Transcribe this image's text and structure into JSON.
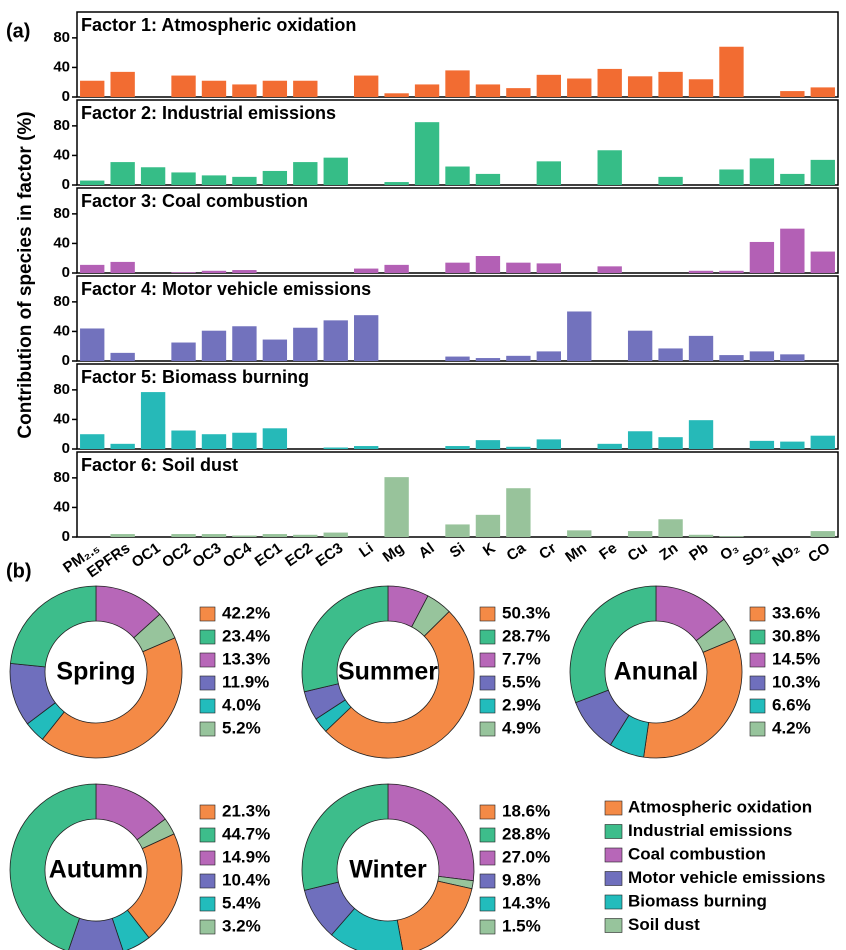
{
  "figure": {
    "panel_a": "(a)",
    "panel_b": "(b)",
    "ylabel": "Contribution of species in factor (%)"
  },
  "legend": {
    "names": [
      "Atmospheric oxidation",
      "Industrial emissions",
      "Coal combustion",
      "Motor vehicle emissions",
      "Biomass burning",
      "Soil dust"
    ],
    "colors": [
      "#f48a46",
      "#3dbd8b",
      "#b767b8",
      "#6f6fbd",
      "#22bcbc",
      "#97c49c"
    ]
  },
  "chart_data": [
    {
      "type": "bar",
      "title": "Factor 1: Atmospheric oxidation",
      "color": "#f26c32",
      "ylim": [
        0,
        115
      ],
      "yticks": [
        0,
        40,
        80
      ],
      "values": [
        22,
        34,
        0,
        29,
        22,
        17,
        22,
        22,
        0,
        29,
        5,
        17,
        36,
        17,
        12,
        30,
        25,
        38,
        28,
        34,
        24,
        68,
        0,
        8,
        13
      ]
    },
    {
      "type": "bar",
      "title": "Factor 2: Industrial emissions",
      "color": "#36bd87",
      "ylim": [
        0,
        115
      ],
      "yticks": [
        0,
        40,
        80
      ],
      "values": [
        6,
        31,
        24,
        17,
        13,
        11,
        19,
        31,
        37,
        0,
        4,
        85,
        25,
        15,
        0,
        32,
        0,
        47,
        0,
        11,
        0,
        21,
        36,
        15,
        34
      ]
    },
    {
      "type": "bar",
      "title": "Factor 3: Coal combustion",
      "color": "#b360b5",
      "ylim": [
        0,
        115
      ],
      "yticks": [
        0,
        40,
        80
      ],
      "values": [
        11,
        15,
        0,
        1,
        3,
        4,
        0,
        0,
        0,
        6,
        11,
        0,
        14,
        23,
        14,
        13,
        0,
        9,
        0,
        0,
        3,
        3,
        42,
        60,
        29
      ]
    },
    {
      "type": "bar",
      "title": "Factor 4: Motor vehicle emissions",
      "color": "#7272bd",
      "ylim": [
        0,
        115
      ],
      "yticks": [
        0,
        40,
        80
      ],
      "values": [
        44,
        11,
        0,
        25,
        41,
        47,
        29,
        45,
        55,
        62,
        0,
        0,
        6,
        4,
        7,
        13,
        67,
        0,
        41,
        17,
        34,
        8,
        13,
        9,
        0
      ]
    },
    {
      "type": "bar",
      "title": "Factor 5: Biomass burning",
      "color": "#26b9b8",
      "ylim": [
        0,
        115
      ],
      "yticks": [
        0,
        40,
        80
      ],
      "values": [
        20,
        7,
        77,
        25,
        20,
        22,
        28,
        0,
        2,
        4,
        0,
        0,
        4,
        12,
        3,
        13,
        0,
        7,
        24,
        16,
        39,
        0,
        11,
        10,
        18
      ]
    },
    {
      "type": "bar",
      "title": "Factor 6: Soil dust",
      "color": "#98c39b",
      "ylim": [
        0,
        115
      ],
      "yticks": [
        0,
        40,
        80
      ],
      "categories": [
        "PM₂.₅",
        "EPFRs",
        "OC1",
        "OC2",
        "OC3",
        "OC4",
        "EC1",
        "EC2",
        "EC3",
        "Li",
        "Mg",
        "Al",
        "Si",
        "K",
        "Ca",
        "Cr",
        "Mn",
        "Fe",
        "Cu",
        "Zn",
        "Pb",
        "O₃",
        "SO₂",
        "NO₂",
        "CO"
      ],
      "values": [
        0,
        4,
        0,
        4,
        4,
        2,
        4,
        3,
        6,
        0,
        81,
        0,
        17,
        30,
        66,
        0,
        9,
        0,
        8,
        24,
        3,
        1,
        0,
        0,
        8
      ]
    },
    {
      "type": "pie",
      "title": "Spring",
      "values": [
        42.2,
        23.4,
        13.3,
        11.9,
        4.0,
        5.2
      ],
      "value_labels": [
        "42.2%",
        "23.4%",
        "13.3%",
        "11.9%",
        "4.0%",
        "5.2%"
      ]
    },
    {
      "type": "pie",
      "title": "Summer",
      "values": [
        50.3,
        28.7,
        7.7,
        5.5,
        2.9,
        4.9
      ],
      "value_labels": [
        "50.3%",
        "28.7%",
        "7.7%",
        "5.5%",
        "2.9%",
        "4.9%"
      ]
    },
    {
      "type": "pie",
      "title": "Anunal",
      "values": [
        33.6,
        30.8,
        14.5,
        10.3,
        6.6,
        4.2
      ],
      "value_labels": [
        "33.6%",
        "30.8%",
        "14.5%",
        "10.3%",
        "6.6%",
        "4.2%"
      ]
    },
    {
      "type": "pie",
      "title": "Autumn",
      "values": [
        21.3,
        44.7,
        14.9,
        10.4,
        5.4,
        3.2
      ],
      "value_labels": [
        "21.3%",
        "44.7%",
        "14.9%",
        "10.4%",
        "5.4%",
        "3.2%"
      ]
    },
    {
      "type": "pie",
      "title": "Winter",
      "values": [
        18.6,
        28.8,
        27.0,
        9.8,
        14.3,
        1.5
      ],
      "value_labels": [
        "18.6%",
        "28.8%",
        "27.0%",
        "9.8%",
        "14.3%",
        "1.5%"
      ]
    }
  ]
}
